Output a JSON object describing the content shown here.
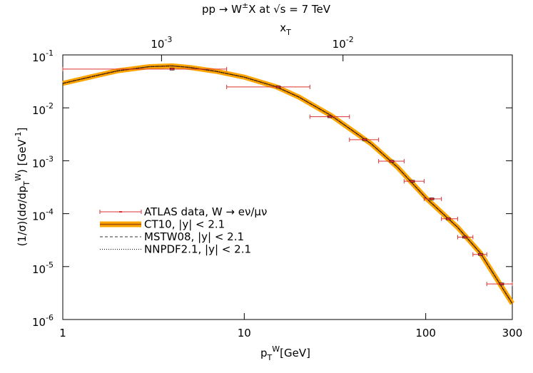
{
  "chart_data": {
    "type": "errorbar-loglog",
    "title": [
      {
        "text": "pp → W",
        "shift": "none"
      },
      {
        "text": "±",
        "shift": "sup"
      },
      {
        "text": "X at √s = 7 TeV",
        "shift": "none"
      }
    ],
    "x_label": [
      {
        "text": "p",
        "shift": "none"
      },
      {
        "text": "T",
        "shift": "sub"
      },
      {
        "text": "W",
        "shift": "sup"
      },
      {
        "text": "[GeV]",
        "shift": "none"
      }
    ],
    "y_label": [
      {
        "text": "(1/σ)(dσ/dp",
        "shift": "none"
      },
      {
        "text": "T",
        "shift": "sub"
      },
      {
        "text": "W",
        "shift": "sup"
      },
      {
        "text": ") [GeV",
        "shift": "none"
      },
      {
        "text": "-1",
        "shift": "sup"
      },
      {
        "text": "]",
        "shift": "none"
      }
    ],
    "x2_label": [
      {
        "text": "x",
        "shift": "none"
      },
      {
        "text": "T",
        "shift": "sub"
      }
    ],
    "log_x": true,
    "log_y": true,
    "xlim": [
      1,
      300
    ],
    "xticks": [
      1,
      10,
      100,
      300
    ],
    "x2lim": [
      0.0002857,
      0.0857
    ],
    "x2ticks": [
      {
        "value": 0.001,
        "label": "10",
        "exp": "-3"
      },
      {
        "value": 0.01,
        "label": "10",
        "exp": "-2"
      }
    ],
    "ylim": [
      1e-06,
      0.1
    ],
    "yticks": [
      {
        "value": 0.1,
        "label": "10",
        "exp": "-1"
      },
      {
        "value": 0.01,
        "label": "10",
        "exp": "-2"
      },
      {
        "value": 0.001,
        "label": "10",
        "exp": "-3"
      },
      {
        "value": 0.0001,
        "label": "10",
        "exp": "-4"
      },
      {
        "value": 1e-05,
        "label": "10",
        "exp": "-5"
      },
      {
        "value": 1e-06,
        "label": "10",
        "exp": "-6"
      }
    ],
    "legend": "center-left",
    "series": [
      {
        "name": "ATLAS data, W → eν/μν",
        "style": "errorbar",
        "color": "#d93030",
        "x": [
          4,
          15.4,
          29.6,
          46,
          65,
          84.5,
          108,
          133,
          164,
          200,
          262
        ],
        "x_low": [
          1,
          8,
          23,
          38,
          55,
          76,
          98,
          122,
          150,
          182,
          217
        ],
        "x_high": [
          8,
          23,
          38,
          55,
          76,
          98,
          122,
          150,
          182,
          217,
          300
        ],
        "values": [
          0.054,
          0.0248,
          0.0068,
          0.0025,
          0.00098,
          0.00041,
          0.00019,
          8e-05,
          3.6e-05,
          1.7e-05,
          4.7e-06
        ]
      },
      {
        "name": "CT10, |y| < 2.1",
        "style": "band",
        "color": "#ffa500",
        "line_color": "#9a4a10",
        "x": [
          1,
          1.5,
          2,
          3,
          4,
          5,
          7,
          10,
          15,
          20,
          30,
          50,
          70,
          100,
          150,
          200,
          300
        ],
        "values": [
          0.029,
          0.04,
          0.05,
          0.06,
          0.062,
          0.058,
          0.049,
          0.038,
          0.025,
          0.016,
          0.0072,
          0.0021,
          0.00075,
          0.0002,
          5.5e-05,
          1.8e-05,
          2e-06
        ]
      },
      {
        "name": "MSTW08, |y| < 2.1",
        "style": "dashed",
        "color": "#333333",
        "x": [
          1,
          1.5,
          2,
          3,
          4,
          5,
          7,
          10,
          15,
          20,
          30,
          50,
          70,
          100,
          150,
          200,
          300
        ],
        "values": [
          0.029,
          0.04,
          0.05,
          0.06,
          0.062,
          0.058,
          0.049,
          0.038,
          0.025,
          0.016,
          0.0072,
          0.0021,
          0.00075,
          0.0002,
          5.5e-05,
          1.8e-05,
          2e-06
        ]
      },
      {
        "name": "NNPDF2.1, |y| < 2.1",
        "style": "dotted",
        "color": "#000000",
        "x": [
          1,
          1.5,
          2,
          3,
          4,
          5,
          7,
          10,
          15,
          20,
          30,
          50,
          70,
          100,
          150,
          200,
          300
        ],
        "values": [
          0.029,
          0.04,
          0.05,
          0.06,
          0.062,
          0.058,
          0.049,
          0.038,
          0.025,
          0.016,
          0.0072,
          0.0021,
          0.00075,
          0.0002,
          5.5e-05,
          1.8e-05,
          2e-06
        ]
      }
    ]
  }
}
